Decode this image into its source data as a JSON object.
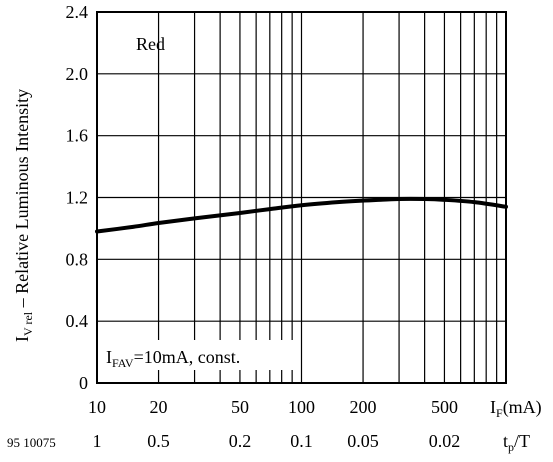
{
  "chart_data": {
    "type": "line",
    "ylabel_main": "I",
    "ylabel_sub": "V rel",
    "ylabel_rest": " – Relative Luminous Intensity",
    "xlabel_main": "I",
    "xlabel_sub": "F",
    "xlabel_rest": "(mA)",
    "x2label_main": "t",
    "x2label_sub": "p",
    "x2label_rest": "/T",
    "figure_id": "95 10075",
    "x_scale": "log",
    "xlim": [
      10,
      1000
    ],
    "ylim": [
      0,
      2.4
    ],
    "grid": true,
    "yticks": [
      "0",
      "0.4",
      "0.8",
      "1.2",
      "1.6",
      "2.0",
      "2.4"
    ],
    "xticks": [
      {
        "x": 10,
        "label": "10"
      },
      {
        "x": 20,
        "label": "20"
      },
      {
        "x": 50,
        "label": "50"
      },
      {
        "x": 100,
        "label": "100"
      },
      {
        "x": 200,
        "label": "200"
      },
      {
        "x": 500,
        "label": "500"
      }
    ],
    "x2ticks": [
      {
        "x": 10,
        "label": "1"
      },
      {
        "x": 20,
        "label": "0.5"
      },
      {
        "x": 50,
        "label": "0.2"
      },
      {
        "x": 100,
        "label": "0.1"
      },
      {
        "x": 200,
        "label": "0.05"
      },
      {
        "x": 500,
        "label": "0.02"
      }
    ],
    "annotations": {
      "series_label": "Red",
      "condition_main": "I",
      "condition_sub": "FAV",
      "condition_rest": "=10mA, const."
    },
    "series": [
      {
        "name": "Red",
        "x": [
          10,
          15,
          20,
          30,
          50,
          70,
          100,
          150,
          200,
          300,
          400,
          500,
          700,
          1000
        ],
        "y": [
          0.98,
          1.01,
          1.035,
          1.065,
          1.1,
          1.125,
          1.15,
          1.17,
          1.18,
          1.19,
          1.19,
          1.185,
          1.17,
          1.14
        ]
      }
    ]
  }
}
